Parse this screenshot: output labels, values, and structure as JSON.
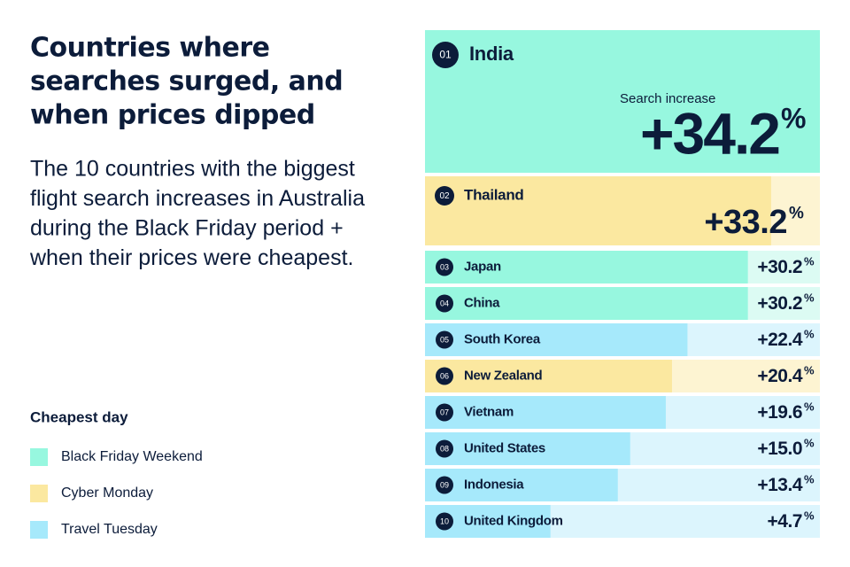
{
  "chart_data": {
    "type": "bar",
    "title": [
      "Countries where",
      "searches surged, and",
      "when prices dipped"
    ],
    "subtitle": [
      "The 10 countries with the biggest",
      "flight search increases in Australia",
      "during the Black Friday period +",
      "when their prices were cheapest."
    ],
    "value_heading": "Search increase",
    "ranks": [
      "01",
      "02",
      "03",
      "04",
      "05",
      "06",
      "07",
      "08",
      "09",
      "10"
    ],
    "categories": [
      "India",
      "Thailand",
      "Japan",
      "China",
      "South Korea",
      "New Zealand",
      "Vietnam",
      "United States",
      "Indonesia",
      "United Kingdom"
    ],
    "values": [
      34.2,
      33.2,
      30.2,
      30.2,
      22.4,
      20.4,
      19.6,
      15.0,
      13.4,
      4.7
    ],
    "value_labels": [
      "+34.2",
      "+33.2",
      "+30.2",
      "+30.2",
      "+22.4",
      "+20.4",
      "+19.6",
      "+15.0",
      "+13.4",
      "+4.7"
    ],
    "value_suffix": "%",
    "colors": [
      "#97f7df",
      "#fbe8a0",
      "#97f7df",
      "#97f7df",
      "#a6e9fb",
      "#fbe8a0",
      "#a6e9fb",
      "#a6e9fb",
      "#a6e9fb",
      "#a6e9fb"
    ],
    "background_colors": [
      "#97f7df",
      "#fdf4d2",
      "#dcfbf3",
      "#dcfbf3",
      "#dcf5fd",
      "#fdf4d2",
      "#dcf5fd",
      "#dcf5fd",
      "#dcf5fd",
      "#dcf5fd"
    ],
    "xlim": [
      -11.5,
      39.5
    ],
    "legend": {
      "title": "Cheapest day",
      "items": [
        {
          "label": "Black Friday Weekend",
          "color": "#97f7df"
        },
        {
          "label": "Cyber Monday",
          "color": "#fbe8a0"
        },
        {
          "label": "Travel Tuesday",
          "color": "#a6e9fb"
        }
      ]
    }
  }
}
